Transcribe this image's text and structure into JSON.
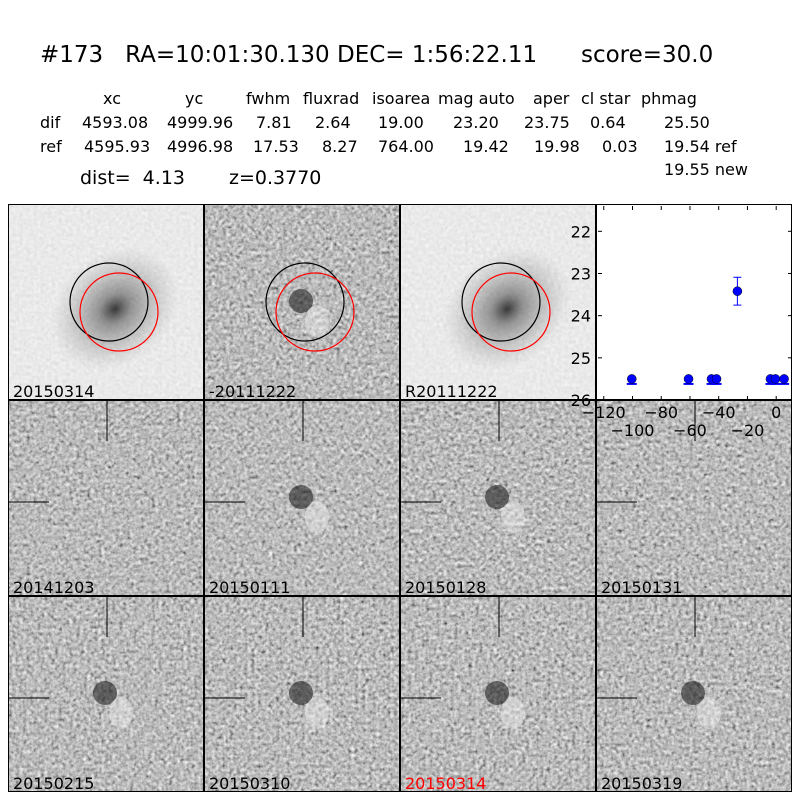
{
  "header": {
    "title": "#173   RA=10:01:30.130 DEC= 1:56:22.11      score=30.0"
  },
  "table": {
    "columns": [
      "xc",
      "yc",
      "fwhm",
      "fluxrad",
      "isoarea",
      "mag auto",
      "aper",
      "cl star",
      "phmag"
    ],
    "rows": [
      {
        "label": "dif",
        "values": [
          "4593.08",
          "4999.96",
          "7.81",
          "2.64",
          "19.00",
          "23.20",
          "23.75",
          "0.64",
          "25.50"
        ]
      },
      {
        "label": "ref",
        "values": [
          "4595.93",
          "4996.98",
          "17.53",
          "8.27",
          "764.00",
          "19.42",
          "19.98",
          "0.03",
          "19.54 ref"
        ]
      }
    ],
    "extra": "19.55 new",
    "dist": "dist=  4.13",
    "z": "z=0.3770"
  },
  "stamps": [
    {
      "label": "20150314",
      "kind": "galaxy",
      "circles": true
    },
    {
      "label": "-20111222",
      "kind": "diff",
      "circles": true
    },
    {
      "label": "R20111222",
      "kind": "galaxy",
      "circles": true
    },
    {
      "label": "20141203",
      "kind": "noise"
    },
    {
      "label": "20150111",
      "kind": "diff"
    },
    {
      "label": "20150128",
      "kind": "diff"
    },
    {
      "label": "20150131",
      "kind": "noise"
    },
    {
      "label": "20150215",
      "kind": "diff"
    },
    {
      "label": "20150310",
      "kind": "diff"
    },
    {
      "label": "20150314",
      "kind": "diff",
      "color": "#ff0000"
    },
    {
      "label": "20150319",
      "kind": "diff"
    }
  ],
  "chart_data": {
    "type": "scatter",
    "xlim": [
      -124,
      11
    ],
    "ylim": [
      26,
      21.4
    ],
    "xticks": [
      -120,
      -100,
      -80,
      -60,
      -40,
      -20,
      0
    ],
    "xtick_labels": [
      "−120",
      "−100",
      "−80",
      "−60",
      "−40",
      "−20",
      "0"
    ],
    "yticks": [
      22,
      23,
      24,
      25,
      26
    ],
    "color": "#0000ff",
    "points": [
      {
        "x": -100.5,
        "y": 25.5,
        "limit": true
      },
      {
        "x": -61,
        "y": 25.5,
        "limit": true
      },
      {
        "x": -45,
        "y": 25.5,
        "limit": true
      },
      {
        "x": -41.5,
        "y": 25.5,
        "limit": true
      },
      {
        "x": -27,
        "y": 23.42,
        "err": 0.33
      },
      {
        "x": -4,
        "y": 25.5,
        "limit": true
      },
      {
        "x": -0.5,
        "y": 25.5,
        "limit": true
      },
      {
        "x": 5.5,
        "y": 25.5,
        "limit": true
      }
    ]
  }
}
